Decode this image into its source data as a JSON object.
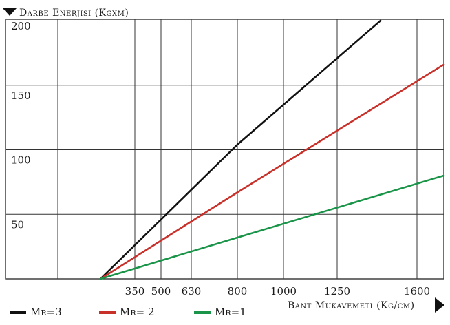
{
  "chart_data": {
    "type": "line",
    "ylabel": "Darbe Enerjisi (Kgxm)",
    "xlabel": "Bant Mukavemeti (Kg/cm)",
    "x_ticks": [
      {
        "value": 350,
        "label": "350"
      },
      {
        "value": 500,
        "label": "500"
      },
      {
        "value": 630,
        "label": "630"
      },
      {
        "value": 800,
        "label": "800"
      },
      {
        "value": 1000,
        "label": "1000"
      },
      {
        "value": 1250,
        "label": "1250"
      },
      {
        "value": 1600,
        "label": "1600"
      }
    ],
    "y_ticks": [
      {
        "value": 50,
        "label": "50"
      },
      {
        "value": 100,
        "label": "100"
      },
      {
        "value": 150,
        "label": "150"
      },
      {
        "value": 200,
        "label": "200"
      }
    ],
    "ylim": [
      0,
      200
    ],
    "grid": true,
    "legend_position": "bottom",
    "series": [
      {
        "name": "Mr=3",
        "color": "#111111",
        "points": [
          [
            230,
            0
          ],
          [
            800,
            104
          ],
          [
            1440,
            200
          ]
        ]
      },
      {
        "name": "Mr= 2",
        "color": "#c8302a",
        "points": [
          [
            230,
            0
          ],
          [
            800,
            67
          ],
          [
            1790,
            166
          ]
        ]
      },
      {
        "name": "Mr=1",
        "color": "#1a9448",
        "points": [
          [
            230,
            0
          ],
          [
            800,
            32
          ],
          [
            1790,
            80
          ]
        ]
      }
    ]
  }
}
